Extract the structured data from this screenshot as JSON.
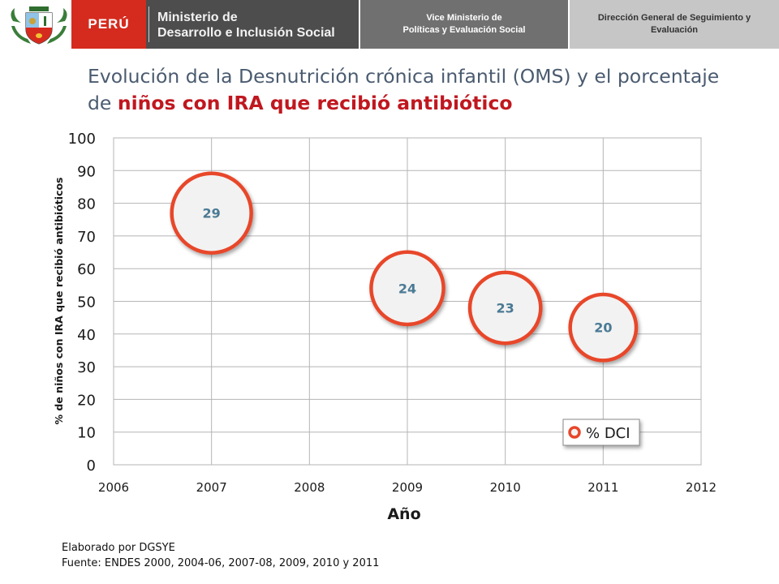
{
  "header": {
    "country": "PERÚ",
    "ministry_line1": "Ministerio de",
    "ministry_line2": "Desarrollo e Inclusión Social",
    "vice_line1": "Vice Ministerio de",
    "vice_line2": "Políticas y Evaluación Social",
    "dg_line1": "Dirección General de Seguimiento y",
    "dg_line2": "Evaluación",
    "emblem_icon": "peru-coat-of-arms-icon"
  },
  "slide": {
    "title_line1": "Evolución de la Desnutrición crónica infantil (OMS)  y el porcentaje",
    "title_line2_prefix": "de ",
    "title_line2_highlight": "niños con IRA que recibió antibiótico"
  },
  "chart_data": {
    "type": "scatter",
    "subtype": "bubble",
    "xlabel": "Año",
    "ylabel": "% de niños con IRA que recibió antibióticos",
    "xlim": [
      2006,
      2012
    ],
    "ylim": [
      0,
      100
    ],
    "x_ticks": [
      "2006",
      "2007",
      "2008",
      "2009",
      "2010",
      "2011",
      "2012"
    ],
    "y_ticks": [
      "0",
      "10",
      "20",
      "30",
      "40",
      "50",
      "60",
      "70",
      "80",
      "90",
      "100"
    ],
    "grid": true,
    "legend": {
      "position": "bottom-right",
      "entries": [
        "% DCI"
      ]
    },
    "series": [
      {
        "name": "% DCI",
        "color": "#e8462a",
        "fill": "#f2f2f2",
        "label_color": "#4a7a94",
        "points": [
          {
            "x": 2007,
            "y": 77,
            "size": 29
          },
          {
            "x": 2009,
            "y": 54,
            "size": 24
          },
          {
            "x": 2010,
            "y": 48,
            "size": 23
          },
          {
            "x": 2011,
            "y": 42,
            "size": 20
          }
        ]
      }
    ]
  },
  "footer": {
    "line1": "Elaborado por DGSYE",
    "line2": "Fuente: ENDES 2000, 2004-06, 2007-08, 2009, 2010 y 2011"
  }
}
